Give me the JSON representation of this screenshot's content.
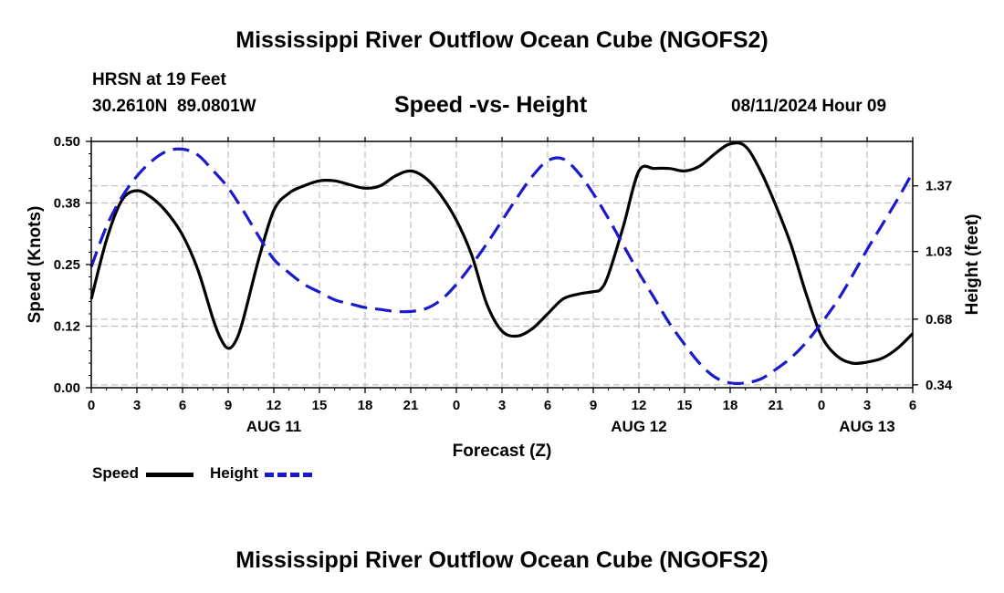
{
  "page": {
    "title": "Mississippi River Outflow Ocean Cube (NGOFS2)",
    "footer_title": "Mississippi River Outflow Ocean Cube (NGOFS2)",
    "station": "HRSN at 19 Feet",
    "coords": "30.2610N  89.0801W",
    "subtitle": "Speed -vs- Height",
    "datetime": "08/11/2024 Hour 09"
  },
  "legend": {
    "speed_label": "Speed",
    "height_label": "Height"
  },
  "colors": {
    "speed": "#000000",
    "height": "#1a1acc",
    "grid": "#bdbdbd"
  },
  "chart_data": {
    "type": "line",
    "xlabel": "Forecast (Z)",
    "ylabel": "Speed (Knots)",
    "y2label": "Height (feet)",
    "xlim": [
      0,
      54
    ],
    "ylim": [
      0,
      0.5
    ],
    "y2lim": [
      0.325,
      1.6
    ],
    "grid": true,
    "x_tick_values": [
      0,
      3,
      6,
      9,
      12,
      15,
      18,
      21,
      24,
      27,
      30,
      33,
      36,
      39,
      42,
      45,
      48,
      51,
      54
    ],
    "x_tick_labels": [
      "0",
      "3",
      "6",
      "9",
      "12",
      "15",
      "18",
      "21",
      "0",
      "3",
      "6",
      "9",
      "12",
      "15",
      "18",
      "21",
      "0",
      "3",
      "6"
    ],
    "date_labels": [
      {
        "x": 12,
        "text": "AUG 11"
      },
      {
        "x": 36,
        "text": "AUG 12"
      },
      {
        "x": 51,
        "text": "AUG 13"
      }
    ],
    "y_ticks": [
      {
        "value": 0.0,
        "label": "0.00"
      },
      {
        "value": 0.125,
        "label": "0.12"
      },
      {
        "value": 0.25,
        "label": "0.25"
      },
      {
        "value": 0.375,
        "label": "0.38"
      },
      {
        "value": 0.5,
        "label": "0.50"
      }
    ],
    "y2_ticks": [
      {
        "value": 0.34,
        "label": "0.34"
      },
      {
        "value": 0.68,
        "label": "0.68"
      },
      {
        "value": 1.03,
        "label": "1.03"
      },
      {
        "value": 1.37,
        "label": "1.37"
      }
    ],
    "series": [
      {
        "name": "Speed",
        "axis": "left",
        "dash": "solid",
        "x": [
          0,
          1,
          2,
          3,
          4,
          5,
          6,
          7,
          8,
          8.5,
          9,
          9.5,
          10,
          11,
          12,
          13,
          14,
          15,
          16,
          17,
          18,
          19,
          20,
          21,
          22,
          23,
          24,
          25,
          26,
          27,
          28,
          29,
          30,
          31,
          32,
          33,
          33.5,
          34,
          35,
          36,
          37,
          38,
          39,
          40,
          41,
          42,
          43,
          44,
          45,
          46,
          47,
          48,
          49,
          50,
          51,
          52,
          53,
          54
        ],
        "y": [
          0.18,
          0.3,
          0.38,
          0.4,
          0.385,
          0.355,
          0.31,
          0.24,
          0.14,
          0.1,
          0.08,
          0.095,
          0.14,
          0.26,
          0.36,
          0.395,
          0.41,
          0.42,
          0.42,
          0.412,
          0.405,
          0.41,
          0.43,
          0.44,
          0.425,
          0.39,
          0.34,
          0.27,
          0.17,
          0.115,
          0.105,
          0.12,
          0.15,
          0.18,
          0.19,
          0.195,
          0.2,
          0.23,
          0.33,
          0.44,
          0.445,
          0.445,
          0.44,
          0.45,
          0.475,
          0.495,
          0.49,
          0.44,
          0.37,
          0.29,
          0.19,
          0.105,
          0.065,
          0.05,
          0.052,
          0.06,
          0.08,
          0.11
        ]
      },
      {
        "name": "Height",
        "axis": "right",
        "dash": "dashed",
        "x": [
          0,
          1,
          2,
          3,
          4,
          5,
          6,
          7,
          8,
          9,
          10,
          11,
          12,
          13,
          14,
          15,
          16,
          17,
          18,
          19,
          20,
          21,
          22,
          23,
          24,
          25,
          26,
          27,
          28,
          29,
          30,
          31,
          32,
          33,
          34,
          35,
          36,
          37,
          38,
          39,
          40,
          41,
          42,
          43,
          44,
          45,
          46,
          47,
          48,
          49,
          50,
          51,
          52,
          53,
          54
        ],
        "y": [
          0.95,
          1.16,
          1.31,
          1.42,
          1.5,
          1.55,
          1.56,
          1.53,
          1.45,
          1.36,
          1.24,
          1.11,
          0.99,
          0.92,
          0.86,
          0.82,
          0.78,
          0.76,
          0.74,
          0.73,
          0.72,
          0.72,
          0.735,
          0.78,
          0.86,
          0.96,
          1.07,
          1.19,
          1.31,
          1.42,
          1.5,
          1.51,
          1.44,
          1.33,
          1.2,
          1.06,
          0.92,
          0.79,
          0.66,
          0.55,
          0.45,
          0.38,
          0.35,
          0.35,
          0.37,
          0.42,
          0.48,
          0.56,
          0.66,
          0.77,
          0.9,
          1.04,
          1.17,
          1.3,
          1.44
        ]
      }
    ]
  }
}
